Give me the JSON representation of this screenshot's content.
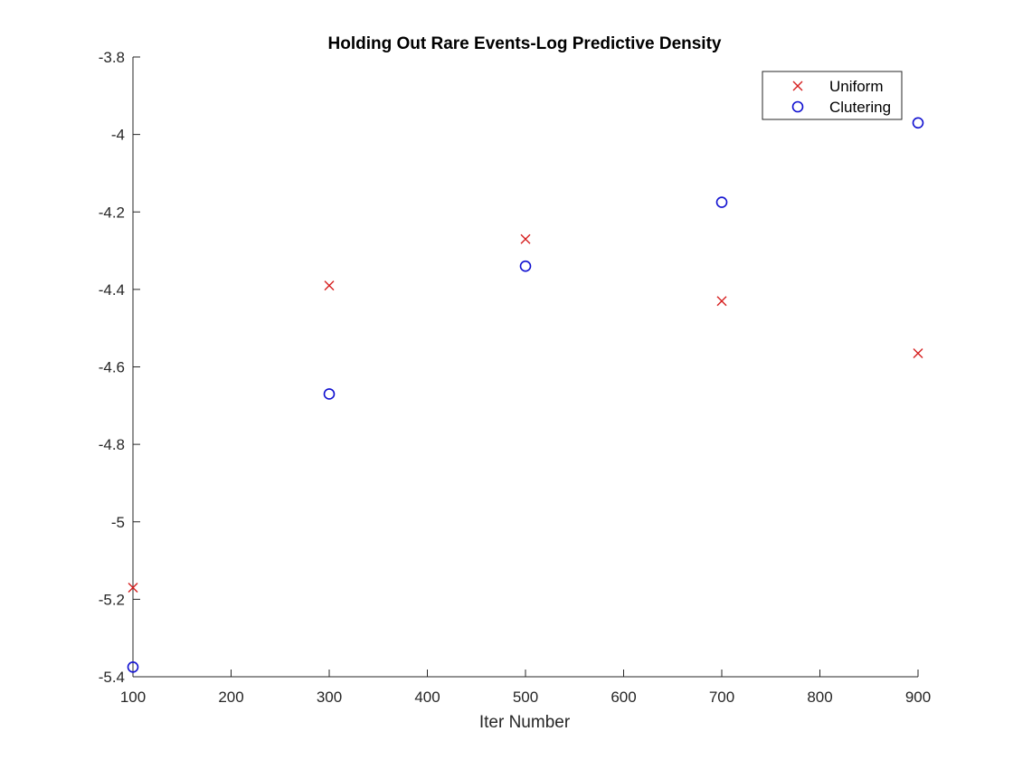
{
  "chart_data": {
    "type": "scatter",
    "title": "Holding Out Rare Events-Log Predictive Density",
    "xlabel": "Iter Number",
    "ylabel": "",
    "xlim": [
      100,
      900
    ],
    "ylim": [
      -5.4,
      -3.8
    ],
    "xticks": [
      "100",
      "200",
      "300",
      "400",
      "500",
      "600",
      "700",
      "800",
      "900"
    ],
    "yticks": [
      "-3.8",
      "-4",
      "-4.2",
      "-4.4",
      "-4.6",
      "-4.8",
      "-5",
      "-5.2",
      "-5.4"
    ],
    "legend_position": "top-right",
    "grid": false,
    "series": [
      {
        "name": "Uniform",
        "marker": "x",
        "color": "#d62020",
        "x": [
          100,
          300,
          500,
          700,
          900
        ],
        "y": [
          -5.17,
          -4.39,
          -4.27,
          -4.43,
          -4.565
        ]
      },
      {
        "name": "Clutering",
        "marker": "o",
        "color": "#1010d0",
        "x": [
          100,
          300,
          500,
          700,
          900
        ],
        "y": [
          -5.375,
          -4.67,
          -4.34,
          -4.175,
          -3.97
        ]
      }
    ]
  }
}
